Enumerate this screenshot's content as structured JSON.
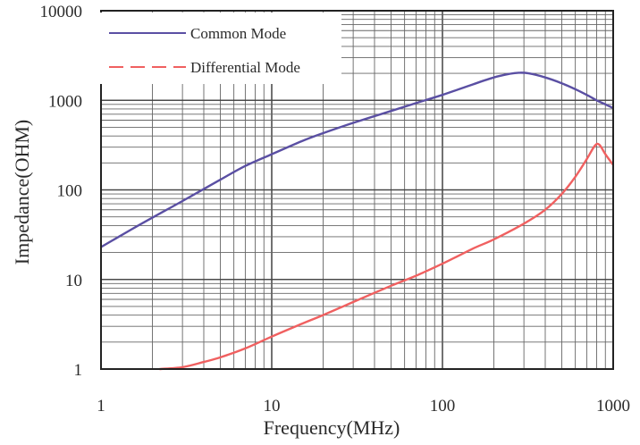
{
  "chart_data": {
    "type": "line",
    "xlabel": "Frequency(MHz)",
    "ylabel": "Impedance(OHM)",
    "x_scale": "log",
    "y_scale": "log",
    "xlim": [
      1,
      1000
    ],
    "ylim": [
      1,
      10000
    ],
    "x_ticks": [
      "1",
      "10",
      "100",
      "1000"
    ],
    "y_ticks": [
      "1",
      "10",
      "100",
      "1000",
      "10000"
    ],
    "grid": true,
    "legend_position": "top-left",
    "series": [
      {
        "name": "Common Mode",
        "color": "#5a4fa3",
        "line_style": "solid",
        "x": [
          1,
          1.5,
          2,
          3,
          5,
          7,
          10,
          15,
          20,
          30,
          50,
          70,
          100,
          150,
          200,
          250,
          280,
          320,
          400,
          500,
          600,
          700,
          800,
          900,
          1000
        ],
        "y": [
          23,
          36,
          49,
          75,
          130,
          185,
          250,
          350,
          430,
          560,
          760,
          930,
          1150,
          1500,
          1800,
          1980,
          2030,
          2000,
          1800,
          1550,
          1330,
          1150,
          1000,
          900,
          820
        ]
      },
      {
        "name": "Differential Mode",
        "color": "#f06060",
        "line_style": "dashed",
        "x": [
          2.2,
          3,
          4,
          5,
          7,
          10,
          15,
          20,
          30,
          50,
          70,
          100,
          150,
          200,
          300,
          400,
          500,
          600,
          700,
          780,
          830,
          900,
          1000
        ],
        "y": [
          1,
          1.05,
          1.2,
          1.35,
          1.7,
          2.3,
          3.2,
          4,
          5.6,
          8.5,
          11,
          15,
          22,
          28,
          42,
          60,
          90,
          140,
          220,
          310,
          320,
          250,
          190
        ]
      }
    ]
  }
}
